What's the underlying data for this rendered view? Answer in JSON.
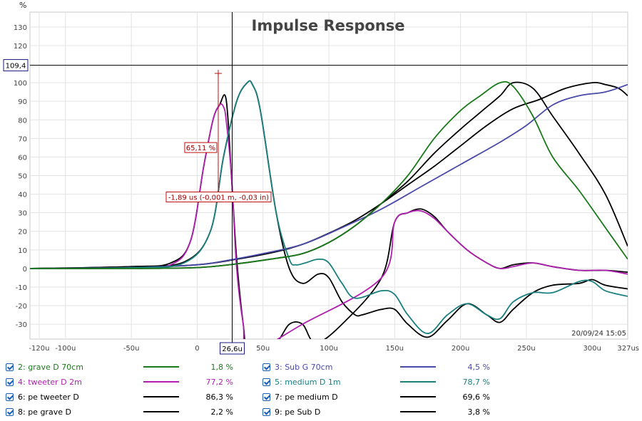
{
  "chart_data": {
    "type": "line",
    "title": "Impulse Response",
    "ylabel": "%",
    "timestamp": "20/09/24 15:05",
    "xlim": [
      -127,
      327
    ],
    "ylim": [
      -38,
      138
    ],
    "x_ticks": [
      {
        "v": -120,
        "label": "-120u"
      },
      {
        "v": -100,
        "label": "-100u"
      },
      {
        "v": -50,
        "label": "-50u"
      },
      {
        "v": 0,
        "label": "0"
      },
      {
        "v": 50,
        "label": "50u"
      },
      {
        "v": 100,
        "label": "100u"
      },
      {
        "v": 150,
        "label": "150u"
      },
      {
        "v": 200,
        "label": "200u"
      },
      {
        "v": 250,
        "label": "250u"
      },
      {
        "v": 300,
        "label": "300u"
      },
      {
        "v": 327,
        "label": "327us"
      }
    ],
    "y_ticks": [
      130,
      120,
      100,
      90,
      80,
      70,
      60,
      50,
      40,
      30,
      20,
      10,
      0,
      -10,
      -20,
      -30
    ],
    "cursor": {
      "x": 26.6,
      "y": 109.4,
      "x_label": "26,6u",
      "y_label": "109,4"
    },
    "marker": {
      "x": 16,
      "y": 65.11,
      "value_label": "65,11 %",
      "delta_label": "-1,89 us (-0,001 m, -0,03 in)"
    },
    "series": [
      {
        "name": "2: grave D 70cm",
        "color": "#1a7a1a",
        "pct": "1,8 %",
        "x": [
          -127,
          -50,
          0,
          30,
          60,
          80,
          100,
          120,
          140,
          160,
          180,
          200,
          215,
          230,
          240,
          255,
          270,
          290,
          310,
          327
        ],
        "y": [
          0,
          0,
          0.5,
          2.5,
          5.5,
          8,
          14,
          23,
          35,
          50,
          70,
          85,
          93,
          100,
          98,
          82,
          60,
          42,
          22,
          5
        ]
      },
      {
        "name": "3: Sub G 70cm",
        "color": "#4a4aa8",
        "pct": "4,5 %",
        "x": [
          -127,
          -50,
          0,
          20,
          50,
          80,
          110,
          140,
          170,
          200,
          230,
          250,
          270,
          290,
          310,
          327
        ],
        "y": [
          0,
          0.5,
          2,
          4,
          8,
          13,
          22,
          32,
          44,
          56,
          68,
          77,
          88,
          93,
          95,
          99
        ]
      },
      {
        "name": "4: tweeter D 2m",
        "color": "#b020b0",
        "pct": "77,2 %",
        "x": [
          -127,
          -50,
          -20,
          -5,
          5,
          12,
          17,
          20,
          22,
          26,
          30,
          35,
          40,
          80,
          140,
          150,
          160,
          170,
          180,
          190,
          205,
          220,
          230,
          240,
          255,
          270,
          290,
          310,
          327
        ],
        "y": [
          0,
          0.5,
          2,
          15,
          55,
          80,
          88,
          87,
          80,
          50,
          0,
          -30,
          -45,
          -30,
          -5,
          25,
          30,
          31,
          27,
          20,
          10,
          3,
          0,
          1,
          3,
          1,
          -1,
          -1,
          -3
        ]
      },
      {
        "name": "5: medium D 1m",
        "color": "#1a8080",
        "pct": "78,7 %",
        "x": [
          -127,
          -50,
          -10,
          10,
          20,
          30,
          38,
          42,
          48,
          60,
          70,
          75,
          82,
          92,
          100,
          110,
          120,
          140,
          150,
          160,
          175,
          190,
          205,
          220,
          230,
          240,
          255,
          270,
          290,
          300,
          310,
          327
        ],
        "y": [
          0,
          0.5,
          3,
          20,
          60,
          90,
          100,
          99,
          85,
          30,
          5,
          2,
          3,
          5,
          3,
          -8,
          -16,
          -12,
          -14,
          -25,
          -35,
          -25,
          -19,
          -25,
          -27,
          -18,
          -13,
          -13,
          -7,
          -7,
          -12,
          -15
        ]
      },
      {
        "name": "6: pe tweeter D",
        "color": "#000000",
        "pct": "86,3 %",
        "x": [
          -127,
          -50,
          -20,
          -5,
          5,
          12,
          17,
          22,
          26,
          30,
          35,
          40,
          60,
          70,
          80,
          90,
          110,
          140,
          150,
          160,
          170,
          180,
          190,
          205,
          220,
          230,
          240,
          255,
          270,
          290,
          310,
          327
        ],
        "y": [
          0,
          1,
          3,
          15,
          55,
          80,
          88,
          91,
          50,
          5,
          -30,
          -50,
          -40,
          -30,
          -30,
          -40,
          -30,
          -5,
          25,
          30,
          32,
          28,
          20,
          10,
          3,
          0,
          2,
          3,
          1,
          -1,
          -1,
          -2
        ]
      },
      {
        "name": "7: pe medium D",
        "color": "#000000",
        "pct": "69,6 %",
        "x": [
          -127,
          -50,
          -10,
          10,
          20,
          30,
          38,
          42,
          48,
          60,
          70,
          80,
          92,
          100,
          110,
          120,
          125,
          130,
          140,
          150,
          160,
          175,
          190,
          205,
          220,
          230,
          240,
          255,
          270,
          290,
          300,
          310,
          327
        ],
        "y": [
          0,
          1,
          3.5,
          20,
          60,
          90,
          100,
          99,
          85,
          30,
          0,
          -8,
          -3,
          -5,
          -18,
          -25,
          -25,
          -24,
          -22,
          -22,
          -30,
          -37,
          -28,
          -19,
          -25,
          -29,
          -22,
          -13,
          -9,
          -8,
          -6,
          -9,
          -11
        ]
      },
      {
        "name": "8: pe grave D",
        "color": "#000000",
        "pct": "2,2 %",
        "x": [
          -127,
          -50,
          0,
          30,
          60,
          80,
          100,
          120,
          140,
          160,
          180,
          200,
          215,
          230,
          240,
          255,
          270,
          290,
          310,
          327
        ],
        "y": [
          0,
          0,
          0.5,
          2.5,
          5.5,
          8,
          14,
          23,
          35,
          47,
          62,
          75,
          84,
          93,
          100,
          97,
          82,
          62,
          40,
          12
        ]
      },
      {
        "name": "9: pe Sub D",
        "color": "#000000",
        "pct": "3,8 %",
        "x": [
          -127,
          -50,
          0,
          30,
          60,
          80,
          100,
          120,
          140,
          160,
          180,
          200,
          220,
          240,
          260,
          280,
          300,
          310,
          320,
          327
        ],
        "y": [
          0,
          0.5,
          2,
          5,
          9,
          13,
          19,
          26,
          35,
          45,
          55,
          66,
          77,
          86,
          91,
          97,
          100,
          99,
          97,
          93
        ]
      }
    ]
  }
}
